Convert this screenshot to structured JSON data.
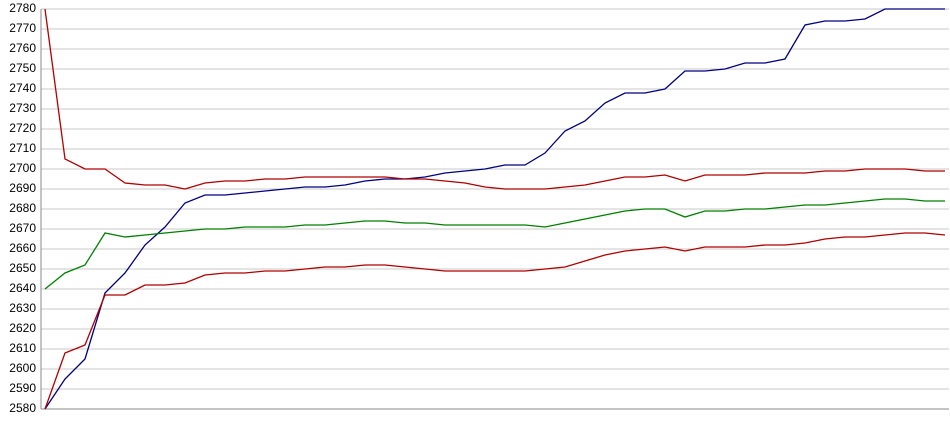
{
  "chart_data": {
    "type": "line",
    "categories": [
      null,
      null,
      null,
      null,
      null,
      null,
      null,
      null,
      null,
      null,
      null,
      null,
      null,
      null,
      null,
      null,
      null,
      null,
      null,
      null,
      null,
      null,
      null,
      null,
      null,
      null,
      null,
      null,
      null,
      null,
      null,
      null,
      null,
      null,
      null,
      null,
      null,
      null,
      null,
      null,
      null,
      null,
      null,
      null,
      null,
      null
    ],
    "series": [
      {
        "color": "#000080",
        "values": [
          2580,
          2595,
          2605,
          2638,
          2648,
          2662,
          2671,
          2683,
          2687,
          2687,
          2688,
          2689,
          2690,
          2691,
          2691,
          2692,
          2694,
          2695,
          2695,
          2696,
          2698,
          2699,
          2700,
          2702,
          2702,
          2708,
          2719,
          2724,
          2733,
          2738,
          2738,
          2740,
          2749,
          2749,
          2750,
          2753,
          2753,
          2755,
          2772,
          2774,
          2774,
          2775,
          2780,
          2780,
          2780,
          2780
        ]
      },
      {
        "color": "#b00000",
        "values": [
          2780,
          2705,
          2700,
          2700,
          2693,
          2692,
          2692,
          2690,
          2693,
          2694,
          2694,
          2695,
          2695,
          2696,
          2696,
          2696,
          2696,
          2696,
          2695,
          2695,
          2694,
          2693,
          2691,
          2690,
          2690,
          2690,
          2691,
          2692,
          2694,
          2696,
          2696,
          2697,
          2694,
          2697,
          2697,
          2697,
          2698,
          2698,
          2698,
          2699,
          2699,
          2700,
          2700,
          2700,
          2699,
          2699
        ]
      },
      {
        "color": "#008000",
        "values": [
          2640,
          2648,
          2652,
          2668,
          2666,
          2667,
          2668,
          2669,
          2670,
          2670,
          2671,
          2671,
          2671,
          2672,
          2672,
          2673,
          2674,
          2674,
          2673,
          2673,
          2672,
          2672,
          2672,
          2672,
          2672,
          2671,
          2673,
          2675,
          2677,
          2679,
          2680,
          2680,
          2676,
          2679,
          2679,
          2680,
          2680,
          2681,
          2682,
          2682,
          2683,
          2684,
          2685,
          2685,
          2684,
          2684
        ]
      },
      {
        "color": "#b00000",
        "values": [
          2580,
          2608,
          2612,
          2637,
          2637,
          2642,
          2642,
          2643,
          2647,
          2648,
          2648,
          2649,
          2649,
          2650,
          2651,
          2651,
          2652,
          2652,
          2651,
          2650,
          2649,
          2649,
          2649,
          2649,
          2649,
          2650,
          2651,
          2654,
          2657,
          2659,
          2660,
          2661,
          2659,
          2661,
          2661,
          2661,
          2662,
          2662,
          2663,
          2665,
          2666,
          2666,
          2667,
          2668,
          2668,
          2667
        ]
      }
    ],
    "ylim": [
      2580,
      2780
    ],
    "yticks": [
      2580,
      2590,
      2600,
      2610,
      2620,
      2630,
      2640,
      2650,
      2660,
      2670,
      2680,
      2690,
      2700,
      2710,
      2720,
      2730,
      2740,
      2750,
      2760,
      2770,
      2780
    ],
    "grid": true
  }
}
